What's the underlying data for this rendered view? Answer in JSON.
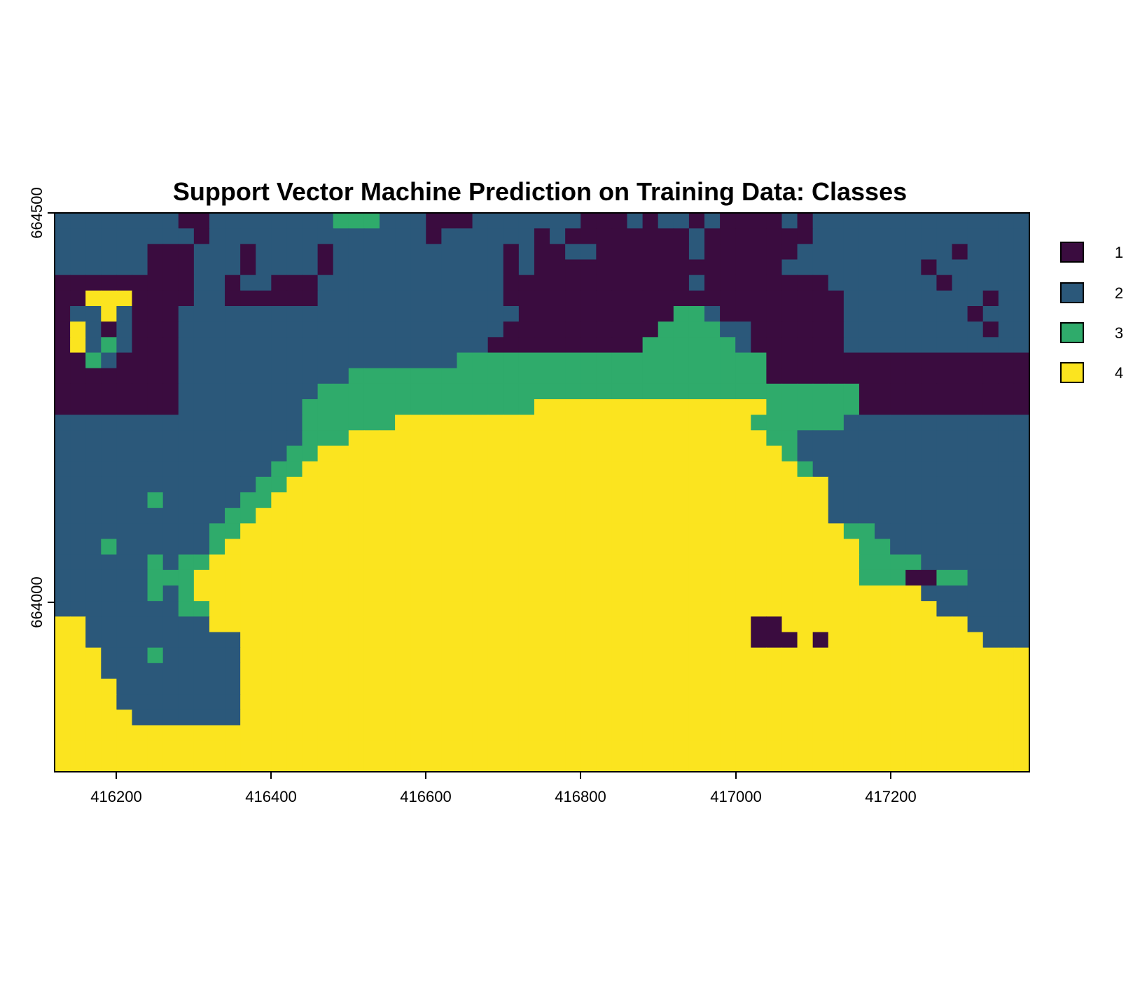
{
  "chart_data": {
    "type": "heatmap",
    "title": "Support Vector Machine Prediction on Training Data: Classes",
    "xlabel": "",
    "ylabel": "",
    "xlim": [
      416120,
      417375
    ],
    "ylim": [
      663780,
      664500
    ],
    "x_ticks": [
      "416200",
      "416400",
      "416600",
      "416800",
      "417000",
      "417200"
    ],
    "y_ticks": [
      "664000",
      "664500"
    ],
    "legend": {
      "position": "right",
      "entries": [
        {
          "label": "1",
          "color": "#3a0c3f"
        },
        {
          "label": "2",
          "color": "#2b587a"
        },
        {
          "label": "3",
          "color": "#2fab6b"
        },
        {
          "label": "4",
          "color": "#fbe41f"
        }
      ]
    },
    "grid": false,
    "cell_size": 20,
    "rows": [
      "222222221122222222222222111222222211121221211112122222222222222",
      "222222222122222222222222122222212111111112111111122222222222222",
      "222222111222122221222222222221211221111112111111222222222212222",
      "222222111222122221222222222221211111111111111112222222221222222",
      "111111111221221112222222222221111111111112111111112222222122222",
      "111111111221111112222222222221111111111111111111111222222222122",
      "122221112222222222222222222222111111111122211111111222222221222",
      "122121112222222222222222222221111111111122222111111222222222122",
      "112221112222222222222222222211111111111112222111111222222222222",
      "111211112222222222222222222211111111111111111111111111111111111",
      "111111112222222222222222111111111111111111111111111111111111111",
      "111111112222222222222222111111111111111111111111111111111111111",
      "111111112222222222222222111111111111111111111111111111111111111",
      "222222222222222222222222222222222222222222222222222222222222222",
      "222222222222222222222222222222222222222222222222222222222222222",
      "222222222222222222222222222222222222222222222222222222222222222",
      "222222222222222222222222222222222222222222222222222222222222222",
      "222222222222222222222222222222222222222222222222222222222222222",
      "222222222222222222222222222222222222222222222222222222222222222",
      "222222222222222222222222222222222222222222222222222222222222222",
      "222222222222222222222222222222222222222222222222222222222222222",
      "222222222222222222222222222222222222222222222222222222222222222",
      "222222222222222222222222222222222222222222222222222222222222222",
      "222222222222222222222222222222222222222222222222222222222222222",
      "222222222222222222222222222222222222222222222222222222222222222",
      "222222222222222222222222222222222222222222222222222222222222222",
      "222222222222222222222222222222222222222222222222222222222222222",
      "222222222222222222222222222222222222222222222222222222222222222",
      "222222222222222222222222222222222222222222222222222222222222222",
      "222222222222222222222222222222222222222222222222222222222222222",
      "222222222222222222222222222222222222222222222222222222222222222",
      "222222222222222222222222222222222222222222222222222222222222222",
      "222222222222222222222222222222222222222222222222222222222222222",
      "222222222222222222222222222222222222222222222222222222222222222",
      "222222222222222222222222222222222222222222222222222222222222222",
      "222222222222222222222222222222222222222222222222222222222222222"
    ],
    "overrides": [
      "0:18-20:3",
      "6:40-41:3",
      "7:39-42:3",
      "8:38-43:3",
      "9:26-45:3",
      "10:19-45:3",
      "11:17-51:3",
      "12:16-30:3",
      "12:31-45:4",
      "12:46-51:3",
      "13:16-21:3",
      "13:22-44:4",
      "13:45-50:3",
      "14:16-18:3",
      "14:19-45:4",
      "14:46-47:3",
      "15:15-16:3",
      "15:17-46:4",
      "15:47:3",
      "16:14-15:3",
      "16:16-47:4",
      "16:48:3",
      "17:13-14:3",
      "17:15-49:4",
      "18:12-13:3",
      "18:14-49:4",
      "19:11-12:3",
      "19:13-49:4",
      "20:10-11:3",
      "20:12-50:4",
      "20:51-52:3",
      "21:10:3",
      "21:11-51:4",
      "21:52-53:3",
      "22:8-9:3",
      "22:10-51:4",
      "22:52-55:3",
      "23:8:3",
      "23:9-51:4",
      "23:52-54:3",
      "23:55-56:1",
      "23:57-58:3",
      "24:8:3",
      "24:9-55:4",
      "25:8-9:3",
      "25:10-56:4",
      "26:0-1:4",
      "26:10-58:4",
      "27:0-1:4",
      "27:12-59:4",
      "28:0-2:4",
      "28:12-62:4",
      "29:0-2:4",
      "29:12-62:4",
      "30:0-3:4",
      "30:12-62:4",
      "31:0-3:4",
      "31:12-62:4",
      "32:0-4:4",
      "32:12-62:4",
      "33:0-62:4",
      "34:0-62:4",
      "35:0-62:4",
      "5:2-4:4",
      "6:3:4",
      "7:1:4",
      "8:1:4",
      "21:3:3",
      "22:6:3",
      "23:6-7:3",
      "8:3:3",
      "9:2:3",
      "18:6:3",
      "24:6:3",
      "28:6:3",
      "26:45-46:1",
      "27:45-47:1",
      "27:49:1"
    ]
  }
}
